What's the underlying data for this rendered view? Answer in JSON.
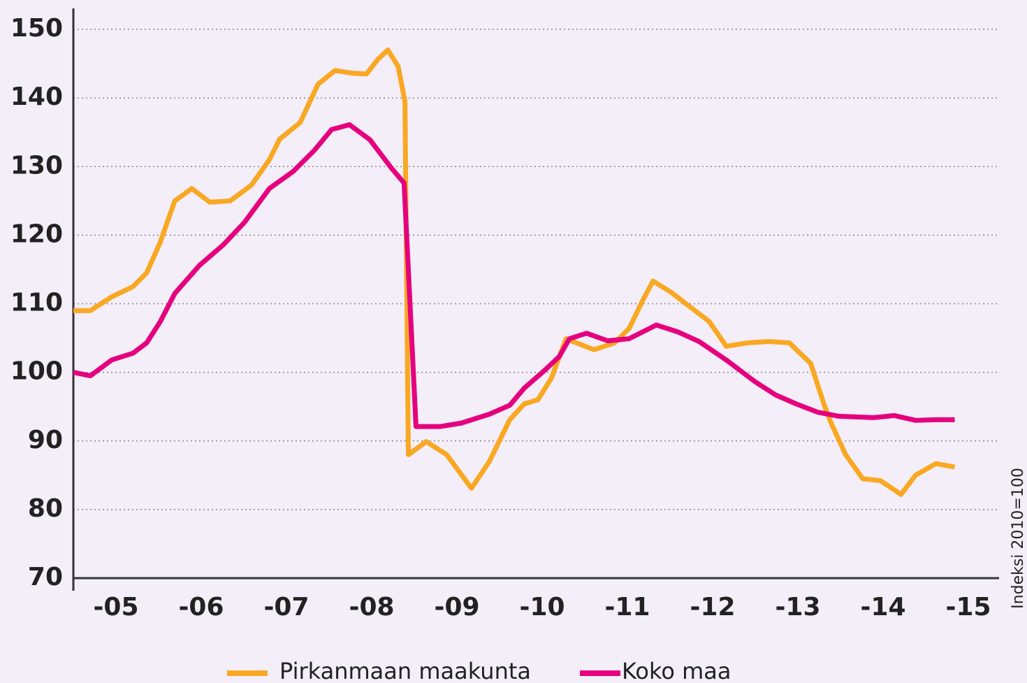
{
  "chart_data": {
    "type": "line",
    "y_label": "Indeksi 2010=100",
    "xlim": [
      2005,
      2015.86
    ],
    "xticks": [
      {
        "value": 2005.5,
        "label": "-05"
      },
      {
        "value": 2006.5,
        "label": "-06"
      },
      {
        "value": 2007.5,
        "label": "-07"
      },
      {
        "value": 2008.5,
        "label": "-08"
      },
      {
        "value": 2009.5,
        "label": "-09"
      },
      {
        "value": 2010.5,
        "label": "-10"
      },
      {
        "value": 2011.5,
        "label": "-11"
      },
      {
        "value": 2012.5,
        "label": "-12"
      },
      {
        "value": 2013.5,
        "label": "-13"
      },
      {
        "value": 2014.5,
        "label": "-14"
      },
      {
        "value": 2015.5,
        "label": "-15"
      }
    ],
    "ylim": [
      70,
      150
    ],
    "yticks": [
      70,
      80,
      90,
      100,
      110,
      120,
      130,
      140,
      150
    ],
    "grid": true,
    "legend": "bottom",
    "series": [
      {
        "name": "Pirkanmaan maakunta",
        "color": "#f9a823",
        "x": [
          2005.0,
          2005.2,
          2005.45,
          2005.7,
          2005.86,
          2006.02,
          2006.19,
          2006.39,
          2006.6,
          2006.84,
          2007.09,
          2007.3,
          2007.42,
          2007.66,
          2007.87,
          2008.07,
          2008.28,
          2008.44,
          2008.57,
          2008.69,
          2008.81,
          2008.89,
          2008.93,
          2009.14,
          2009.38,
          2009.67,
          2009.88,
          2010.12,
          2010.29,
          2010.45,
          2010.61,
          2010.78,
          2010.9,
          2011.11,
          2011.35,
          2011.52,
          2011.68,
          2011.8,
          2012.01,
          2012.25,
          2012.46,
          2012.66,
          2012.91,
          2013.16,
          2013.4,
          2013.65,
          2013.81,
          2013.89,
          2014.06,
          2014.26,
          2014.47,
          2014.71,
          2014.88,
          2015.12,
          2015.34
        ],
        "values": [
          109,
          109,
          111,
          112.5,
          114.5,
          119,
          125,
          126.8,
          124.8,
          125,
          127.3,
          131,
          134,
          136.4,
          142,
          144,
          143.6,
          143.5,
          145.6,
          147,
          144.6,
          139.5,
          88,
          89.9,
          88,
          83.1,
          87,
          93.1,
          95.4,
          96,
          99.2,
          104.9,
          104.3,
          103.3,
          104.3,
          106.4,
          110.5,
          113.3,
          111.7,
          109.4,
          107.4,
          103.8,
          104.3,
          104.5,
          104.3,
          101.3,
          95.2,
          92.6,
          88,
          84.5,
          84.2,
          82.2,
          85,
          86.7,
          86.2
        ]
      },
      {
        "name": "Koko maa",
        "color": "#e5007e",
        "x": [
          2005.0,
          2005.2,
          2005.45,
          2005.7,
          2005.86,
          2006.02,
          2006.19,
          2006.48,
          2006.76,
          2007.01,
          2007.3,
          2007.58,
          2007.83,
          2008.03,
          2008.24,
          2008.48,
          2008.73,
          2008.88,
          2009.02,
          2009.3,
          2009.55,
          2009.88,
          2010.12,
          2010.29,
          2010.53,
          2010.7,
          2010.82,
          2011.02,
          2011.27,
          2011.52,
          2011.84,
          2012.09,
          2012.34,
          2012.66,
          2012.99,
          2013.24,
          2013.48,
          2013.73,
          2013.98,
          2014.39,
          2014.63,
          2014.88,
          2015.12,
          2015.34
        ],
        "values": [
          100,
          99.5,
          101.8,
          102.8,
          104.3,
          107.4,
          111.5,
          115.6,
          118.6,
          121.9,
          126.8,
          129.3,
          132.4,
          135.4,
          136.1,
          133.9,
          129.8,
          127.6,
          92.1,
          92.1,
          92.6,
          93.9,
          95.2,
          97.7,
          100.3,
          102.3,
          104.9,
          105.7,
          104.6,
          104.9,
          106.9,
          105.9,
          104.5,
          101.8,
          98.7,
          96.7,
          95.4,
          94.2,
          93.6,
          93.4,
          93.7,
          93,
          93.1,
          93.1
        ]
      }
    ]
  }
}
